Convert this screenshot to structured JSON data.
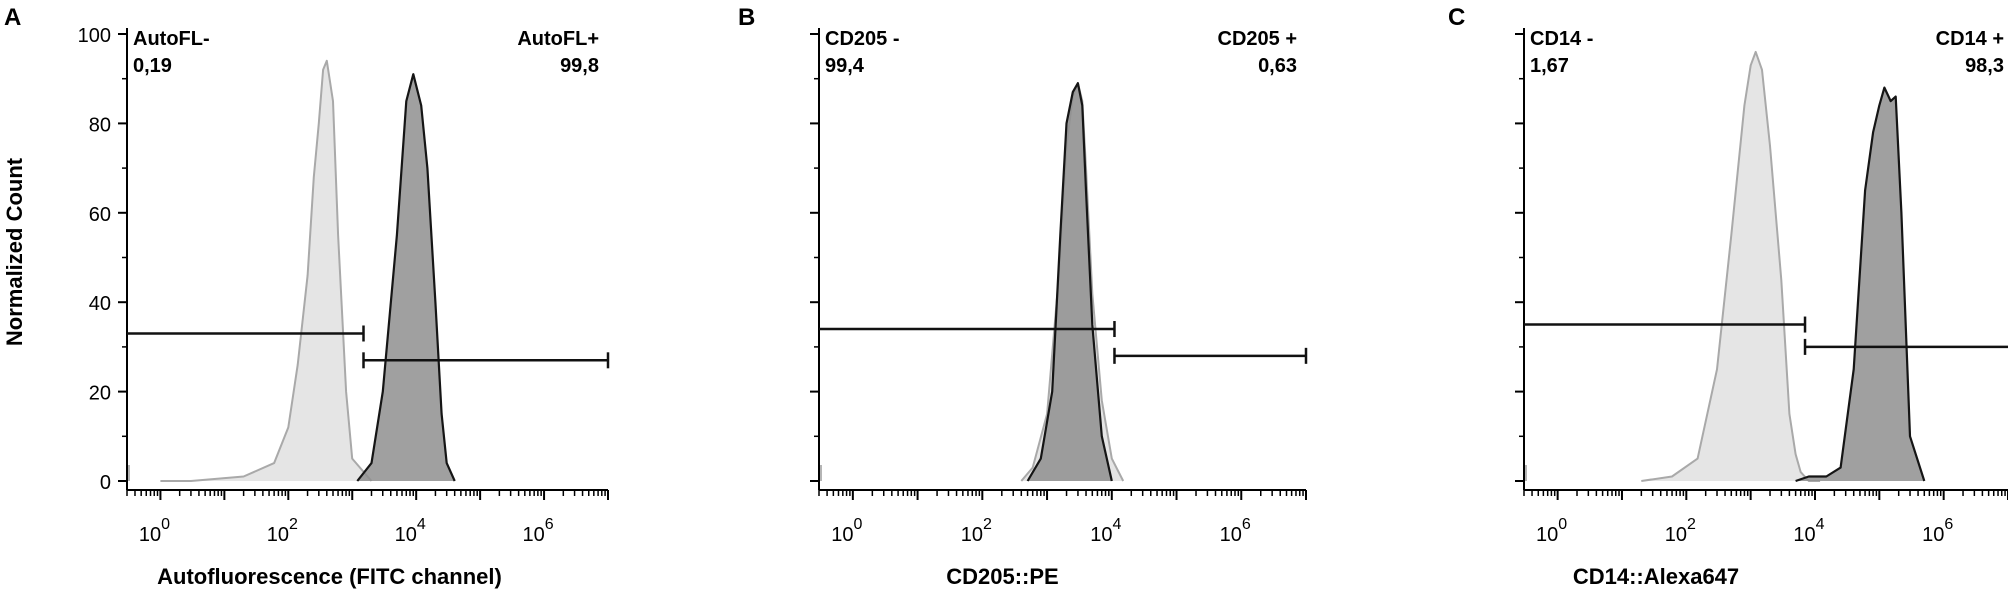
{
  "figure": {
    "ylabel": "Normalized Count",
    "y_ticks": [
      "0",
      "20",
      "40",
      "60",
      "80",
      "100"
    ]
  },
  "chart_data": [
    {
      "panel": "A",
      "type": "area",
      "xlabel": "Autofluorescence (FITC channel)",
      "x_scale": "log",
      "xlim": [
        0.3,
        10000000
      ],
      "ylim": [
        0,
        100
      ],
      "x_tick_labels": [
        "10^0",
        "10^2",
        "10^4",
        "10^6"
      ],
      "gates": [
        {
          "name": "AutoFL-",
          "value": "0,19",
          "x_range": [
            0.3,
            1500
          ],
          "y": 33
        },
        {
          "name": "AutoFL+",
          "value": "99,8",
          "x_range": [
            1500,
            10000000
          ],
          "y": 27
        }
      ],
      "series": [
        {
          "x": [
            1,
            3,
            20,
            60,
            100,
            140,
            200,
            250,
            300,
            350,
            400,
            500,
            600,
            800,
            1000,
            2000
          ],
          "y": [
            0,
            0,
            1,
            4,
            12,
            26,
            46,
            68,
            80,
            92,
            94,
            85,
            55,
            20,
            5,
            0
          ]
        },
        {
          "x": [
            1200,
            2000,
            3000,
            5000,
            7000,
            9000,
            12000,
            15000,
            20000,
            25000,
            30000,
            40000
          ],
          "y": [
            0,
            4,
            20,
            55,
            85,
            91,
            84,
            70,
            40,
            15,
            4,
            0
          ]
        }
      ]
    },
    {
      "panel": "B",
      "type": "area",
      "xlabel": "CD205::PE",
      "x_scale": "log",
      "xlim": [
        0.3,
        10000000
      ],
      "ylim": [
        0,
        100
      ],
      "x_tick_labels": [
        "10^0",
        "10^2",
        "10^4",
        "10^6"
      ],
      "gates": [
        {
          "name": "CD205 -",
          "value": "99,4",
          "x_range": [
            0.3,
            11000
          ],
          "y": 34
        },
        {
          "name": "CD205 +",
          "value": "0,63",
          "x_range": [
            11000,
            10000000
          ],
          "y": 28
        }
      ],
      "series": [
        {
          "x": [
            400,
            600,
            1000,
            1500,
            2000,
            2500,
            3000,
            3500,
            4000,
            5000,
            7000,
            10000,
            15000
          ],
          "y": [
            0,
            3,
            15,
            45,
            75,
            86,
            89,
            85,
            70,
            42,
            18,
            5,
            0
          ]
        },
        {
          "x": [
            500,
            800,
            1200,
            1600,
            2000,
            2500,
            3000,
            3500,
            4000,
            5000,
            7000,
            10000
          ],
          "y": [
            0,
            5,
            20,
            55,
            80,
            87,
            89,
            84,
            65,
            35,
            10,
            0
          ]
        }
      ]
    },
    {
      "panel": "C",
      "type": "area",
      "xlabel": "CD14::Alexa647",
      "x_scale": "log",
      "xlim": [
        0.3,
        10000000
      ],
      "ylim": [
        0,
        100
      ],
      "x_tick_labels": [
        "10^0",
        "10^2",
        "10^4",
        "10^6"
      ],
      "gates": [
        {
          "name": "CD14 -",
          "value": "1,67",
          "x_range": [
            0.3,
            7000
          ],
          "y": 35
        },
        {
          "name": "CD14 +",
          "value": "98,3",
          "x_range": [
            7000,
            10000000
          ],
          "y": 30
        }
      ],
      "series": [
        {
          "x": [
            20,
            60,
            150,
            300,
            500,
            800,
            1000,
            1200,
            1500,
            2000,
            3000,
            4000,
            5000,
            6000,
            8000,
            12000
          ],
          "y": [
            0,
            1,
            5,
            25,
            55,
            84,
            93,
            96,
            92,
            75,
            45,
            15,
            6,
            2,
            0,
            0
          ]
        },
        {
          "x": [
            5000,
            8000,
            15000,
            25000,
            40000,
            60000,
            80000,
            100000,
            120000,
            150000,
            180000,
            220000,
            300000,
            500000
          ],
          "y": [
            0,
            1,
            1,
            3,
            25,
            65,
            78,
            84,
            88,
            85,
            86,
            60,
            10,
            0
          ]
        }
      ]
    }
  ]
}
